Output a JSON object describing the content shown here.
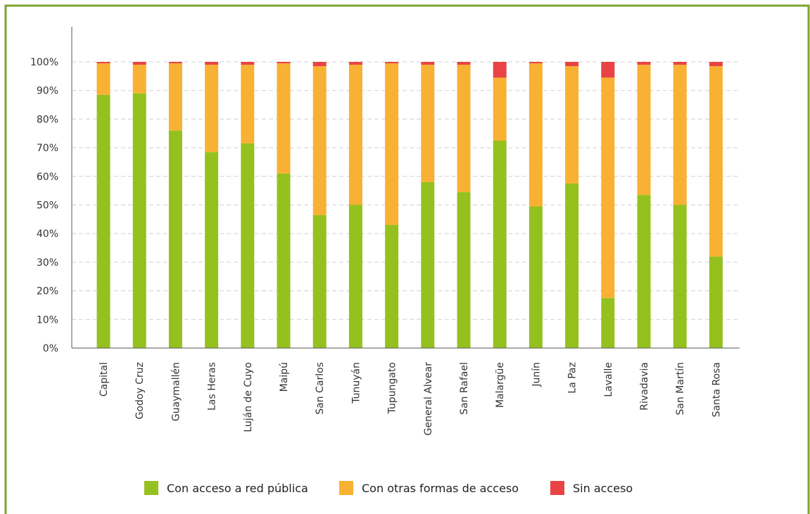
{
  "colors": {
    "frame": "#7aa531",
    "grid": "#d0d0d0",
    "axis": "#555555"
  },
  "chart_data": {
    "type": "bar",
    "stacked": true,
    "title": "",
    "xlabel": "",
    "ylabel": "",
    "ylim": [
      0,
      100
    ],
    "yticks": [
      0,
      10,
      20,
      30,
      40,
      50,
      60,
      70,
      80,
      90,
      100
    ],
    "ytick_labels": [
      "0%",
      "10%",
      "20%",
      "30%",
      "40%",
      "50%",
      "60%",
      "70%",
      "80%",
      "90%",
      "100%"
    ],
    "grid": true,
    "legend_position": "bottom",
    "categories": [
      "Capital",
      "Godoy Cruz",
      "Guaymallén",
      "Las Heras",
      "Luján de Cuyo",
      "Maipú",
      "San Carlos",
      "Tunuyán",
      "Tupungato",
      "General Alvear",
      "San Rafael",
      "Malargüe",
      "Junín",
      "La Paz",
      "Lavalle",
      "Rivadavia",
      "San Martín",
      "Santa Rosa"
    ],
    "series": [
      {
        "name": "Con acceso a red pública",
        "color": "#95c11f",
        "values": [
          88.5,
          89.0,
          76.0,
          68.5,
          71.5,
          61.0,
          46.5,
          50.0,
          43.0,
          58.0,
          54.5,
          72.5,
          49.5,
          57.5,
          17.5,
          53.5,
          50.0,
          32.0
        ]
      },
      {
        "name": "Con otras formas de acceso",
        "color": "#f8b133",
        "values": [
          11.0,
          10.0,
          23.5,
          30.5,
          27.5,
          38.5,
          52.0,
          49.0,
          56.5,
          41.0,
          44.5,
          22.0,
          50.0,
          41.0,
          77.0,
          45.5,
          49.0,
          66.5
        ]
      },
      {
        "name": "Sin acceso",
        "color": "#e94345",
        "values": [
          0.5,
          1.0,
          0.5,
          1.0,
          1.0,
          0.5,
          1.5,
          1.0,
          0.5,
          1.0,
          1.0,
          5.5,
          0.5,
          1.5,
          5.5,
          1.0,
          1.0,
          1.5
        ]
      }
    ]
  }
}
